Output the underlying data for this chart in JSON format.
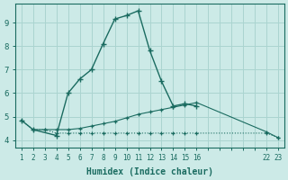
{
  "xlabel": "Humidex (Indice chaleur)",
  "bg_color": "#cceae7",
  "grid_color": "#aad4d0",
  "line_color": "#1a6b60",
  "xlim": [
    0.5,
    23.5
  ],
  "ylim": [
    3.7,
    9.8
  ],
  "yticks": [
    4,
    5,
    6,
    7,
    8,
    9
  ],
  "xtick_labels": [
    "1",
    "2",
    "3",
    "4",
    "5",
    "6",
    "7",
    "8",
    "9",
    "10",
    "11",
    "12",
    "13",
    "14",
    "15",
    "16",
    "",
    "",
    "",
    "",
    "",
    "22",
    "23"
  ],
  "xtick_pos": [
    1,
    2,
    3,
    4,
    5,
    6,
    7,
    8,
    9,
    10,
    11,
    12,
    13,
    14,
    15,
    16,
    17,
    18,
    19,
    20,
    21,
    22,
    23
  ],
  "line1_x": [
    1,
    2,
    3,
    4,
    5,
    6,
    7,
    8,
    9,
    10,
    11,
    12,
    13,
    14,
    15,
    16,
    22,
    23
  ],
  "line1_y": [
    4.85,
    4.45,
    4.45,
    4.3,
    4.3,
    4.3,
    4.3,
    4.3,
    4.3,
    4.3,
    4.3,
    4.3,
    4.3,
    4.3,
    4.3,
    4.3,
    4.3,
    4.1
  ],
  "line2_x": [
    2,
    3,
    4,
    5,
    6,
    7,
    8,
    9,
    10,
    11,
    12,
    13,
    14,
    15,
    16,
    22,
    23
  ],
  "line2_y": [
    4.45,
    4.45,
    4.45,
    4.45,
    4.5,
    4.6,
    4.7,
    4.8,
    4.95,
    5.1,
    5.2,
    5.3,
    5.4,
    5.5,
    5.6,
    4.35,
    4.1
  ],
  "line3_x": [
    1,
    2,
    4,
    5,
    6,
    7,
    8,
    9,
    10,
    11,
    12,
    13,
    14,
    15,
    16
  ],
  "line3_y": [
    4.85,
    4.45,
    4.2,
    6.0,
    6.6,
    7.0,
    8.1,
    9.15,
    9.3,
    9.5,
    7.8,
    6.5,
    5.45,
    5.55,
    5.45
  ]
}
